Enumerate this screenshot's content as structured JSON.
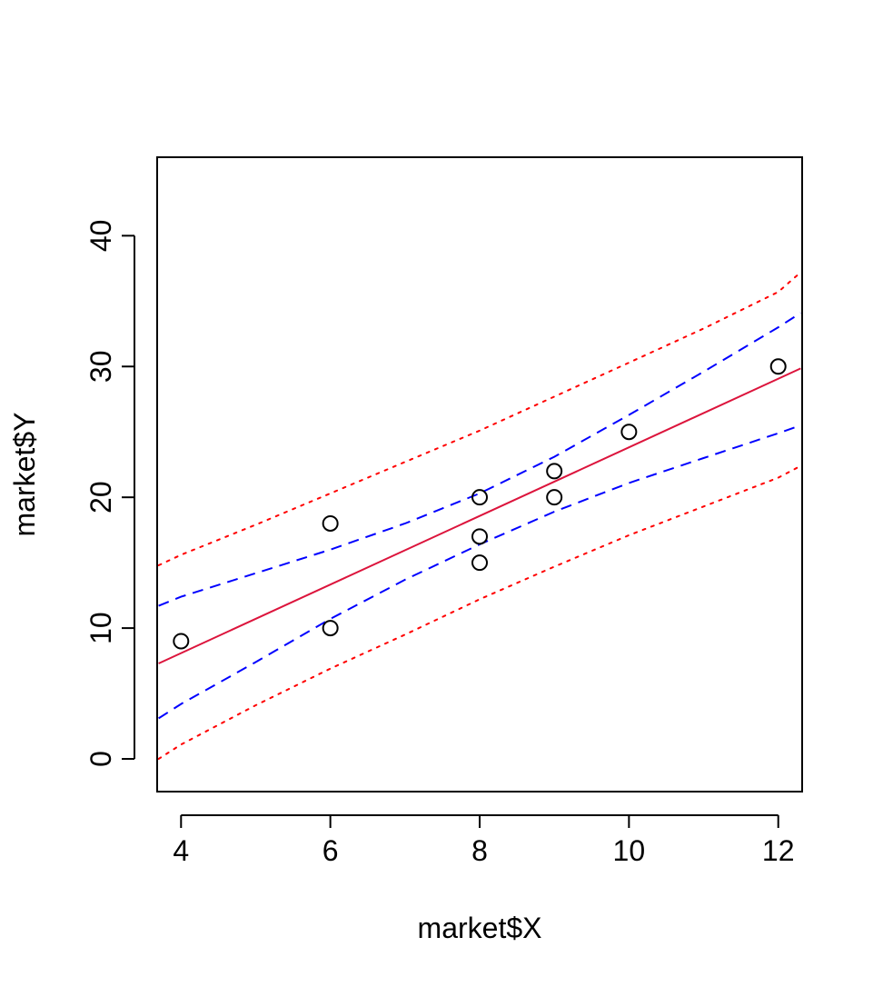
{
  "chart_data": {
    "type": "scatter",
    "title": "",
    "xlabel": "market$X",
    "ylabel": "market$Y",
    "xlim": [
      3.68,
      12.32
    ],
    "ylim": [
      -2.5,
      46.0
    ],
    "x_ticks": [
      4,
      6,
      8,
      10,
      12
    ],
    "y_ticks": [
      0,
      10,
      20,
      30,
      40
    ],
    "x_tick_labels": [
      "4",
      "6",
      "8",
      "10",
      "12"
    ],
    "y_tick_labels": [
      "0",
      "10",
      "20",
      "30",
      "40"
    ],
    "grid": false,
    "legend": "none",
    "points": [
      {
        "x": 4,
        "y": 9
      },
      {
        "x": 6,
        "y": 10
      },
      {
        "x": 6,
        "y": 18
      },
      {
        "x": 8,
        "y": 15
      },
      {
        "x": 8,
        "y": 17
      },
      {
        "x": 8,
        "y": 20
      },
      {
        "x": 9,
        "y": 20
      },
      {
        "x": 9,
        "y": 22
      },
      {
        "x": 10,
        "y": 25
      },
      {
        "x": 12,
        "y": 30
      }
    ],
    "series": [
      {
        "kind": "fit",
        "color": "#DC143C",
        "dash": "solid",
        "x": [
          3.7,
          12.3
        ],
        "y": [
          7.3,
          29.85
        ]
      },
      {
        "kind": "confidence-upper",
        "color": "#0000FF",
        "dash": "dashed",
        "x": [
          3.7,
          4,
          5,
          6,
          7,
          8,
          9,
          10,
          11,
          12,
          12.3
        ],
        "y": [
          11.7,
          12.4,
          14.2,
          16.0,
          18.0,
          20.3,
          23.1,
          26.3,
          29.6,
          33.0,
          34.1
        ]
      },
      {
        "kind": "confidence-lower",
        "color": "#0000FF",
        "dash": "dashed",
        "x": [
          3.7,
          4,
          5,
          6,
          7,
          8,
          9,
          10,
          11,
          12,
          12.3
        ],
        "y": [
          3.1,
          4.2,
          7.4,
          10.7,
          13.7,
          16.4,
          18.9,
          21.1,
          23.0,
          24.9,
          25.5
        ]
      },
      {
        "kind": "prediction-upper",
        "color": "#FF0000",
        "dash": "dotted",
        "x": [
          3.7,
          4,
          5,
          6,
          7,
          8,
          9,
          10,
          11,
          12,
          12.3
        ],
        "y": [
          14.8,
          15.6,
          17.9,
          20.3,
          22.7,
          25.1,
          27.7,
          30.3,
          32.9,
          35.7,
          37.2
        ]
      },
      {
        "kind": "prediction-lower",
        "color": "#FF0000",
        "dash": "dotted",
        "x": [
          3.7,
          4,
          5,
          6,
          7,
          8,
          9,
          10,
          11,
          12,
          12.3
        ],
        "y": [
          0.0,
          1.1,
          4.1,
          6.9,
          9.5,
          12.2,
          14.7,
          17.1,
          19.3,
          21.5,
          22.4
        ]
      }
    ]
  }
}
